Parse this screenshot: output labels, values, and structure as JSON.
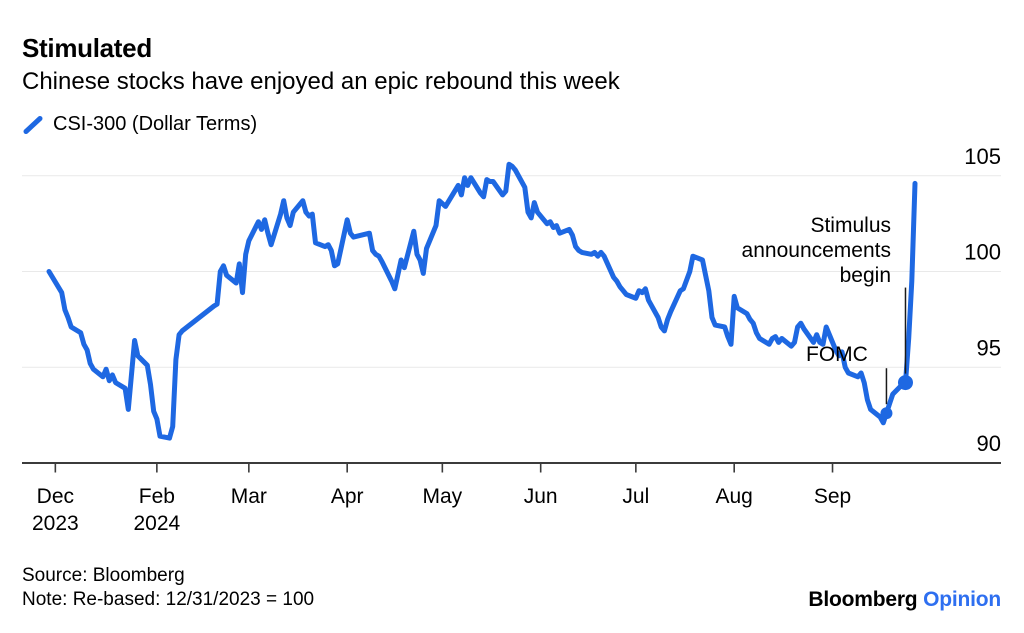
{
  "header": {
    "title": "Stimulated",
    "subtitle": "Chinese stocks have enjoyed an epic rebound this week"
  },
  "legend": {
    "series_label": "CSI-300 (Dollar Terms)"
  },
  "footer": {
    "source": "Source: Bloomberg",
    "note": "Note: Re-based: 12/31/2023 = 100",
    "logo": {
      "bloomberg": "Bloomberg",
      "opinion": "Opinion"
    }
  },
  "colors": {
    "line": "#1e68e2",
    "opinion_blue": "#2e6ff0",
    "grid": "#e9e9e9",
    "axis": "#3b3b3b",
    "text": "#000000",
    "pointer": "#1a1a1a"
  },
  "chart_data": {
    "type": "line",
    "title": "Stimulated",
    "subtitle": "Chinese stocks have enjoyed an epic rebound this week",
    "series_name": "CSI-300 (Dollar Terms)",
    "note": "Re-based: 12/31/2023 = 100",
    "grid": "horizontal",
    "legend_position": "top-left",
    "x_range": [
      "2023-12-29",
      "2024-09-27"
    ],
    "ylim": [
      90,
      106
    ],
    "y_axis": {
      "ticks": [
        105,
        100,
        95,
        90
      ],
      "baseline": 90,
      "side": "right"
    },
    "x_ticks": [
      {
        "label": "Dec",
        "year": "2023",
        "date": "2023-12-31"
      },
      {
        "label": "Feb",
        "year": "2024",
        "date": "2024-02-01"
      },
      {
        "label": "Mar",
        "date": "2024-03-01"
      },
      {
        "label": "Apr",
        "date": "2024-04-01"
      },
      {
        "label": "May",
        "date": "2024-05-01"
      },
      {
        "label": "Jun",
        "date": "2024-06-01"
      },
      {
        "label": "Jul",
        "date": "2024-07-01"
      },
      {
        "label": "Aug",
        "date": "2024-08-01"
      },
      {
        "label": "Sep",
        "date": "2024-09-01"
      }
    ],
    "markers": [
      {
        "date": "2024-09-18",
        "value": 92.6,
        "label": "FOMC"
      },
      {
        "date": "2024-09-24",
        "value": 94.2,
        "label": "Stimulus announcements begin"
      }
    ],
    "points": [
      [
        "2023-12-29",
        100
      ],
      [
        "2024-01-02",
        98.9
      ],
      [
        "2024-01-03",
        98
      ],
      [
        "2024-01-04",
        97.6
      ],
      [
        "2024-01-05",
        97.1
      ],
      [
        "2024-01-08",
        96.8
      ],
      [
        "2024-01-09",
        96.2
      ],
      [
        "2024-01-10",
        95.9
      ],
      [
        "2024-01-11",
        95.2
      ],
      [
        "2024-01-12",
        94.9
      ],
      [
        "2024-01-15",
        94.5
      ],
      [
        "2024-01-16",
        94.9
      ],
      [
        "2024-01-17",
        94.3
      ],
      [
        "2024-01-18",
        94.6
      ],
      [
        "2024-01-19",
        94.2
      ],
      [
        "2024-01-22",
        93.9
      ],
      [
        "2024-01-23",
        92.8
      ],
      [
        "2024-01-25",
        96.4
      ],
      [
        "2024-01-26",
        95.6
      ],
      [
        "2024-01-29",
        95.1
      ],
      [
        "2024-01-30",
        94.1
      ],
      [
        "2024-01-31",
        92.7
      ],
      [
        "2024-02-01",
        92.3
      ],
      [
        "2024-02-02",
        91.4
      ],
      [
        "2024-02-05",
        91.3
      ],
      [
        "2024-02-06",
        91.9
      ],
      [
        "2024-02-07",
        95.4
      ],
      [
        "2024-02-08",
        96.7
      ],
      [
        "2024-02-09",
        96.9
      ],
      [
        "2024-02-19",
        98.2
      ],
      [
        "2024-02-20",
        98.3
      ],
      [
        "2024-02-21",
        100
      ],
      [
        "2024-02-22",
        100.3
      ],
      [
        "2024-02-23",
        99.8
      ],
      [
        "2024-02-26",
        99.4
      ],
      [
        "2024-02-27",
        100.4
      ],
      [
        "2024-02-28",
        98.9
      ],
      [
        "2024-02-29",
        100.9
      ],
      [
        "2024-03-01",
        101.6
      ],
      [
        "2024-03-04",
        102.6
      ],
      [
        "2024-03-05",
        102.2
      ],
      [
        "2024-03-06",
        102.7
      ],
      [
        "2024-03-07",
        102
      ],
      [
        "2024-03-08",
        101.4
      ],
      [
        "2024-03-11",
        103
      ],
      [
        "2024-03-12",
        103.7
      ],
      [
        "2024-03-13",
        102.8
      ],
      [
        "2024-03-14",
        102.4
      ],
      [
        "2024-03-15",
        103.1
      ],
      [
        "2024-03-18",
        103.7
      ],
      [
        "2024-03-19",
        103.1
      ],
      [
        "2024-03-20",
        102.9
      ],
      [
        "2024-03-21",
        103
      ],
      [
        "2024-03-22",
        101.5
      ],
      [
        "2024-03-25",
        101.3
      ],
      [
        "2024-03-26",
        101.4
      ],
      [
        "2024-03-27",
        101.1
      ],
      [
        "2024-03-28",
        100.3
      ],
      [
        "2024-03-29",
        100.4
      ],
      [
        "2024-04-01",
        102.7
      ],
      [
        "2024-04-02",
        102
      ],
      [
        "2024-04-03",
        101.8
      ],
      [
        "2024-04-08",
        102
      ],
      [
        "2024-04-09",
        101.1
      ],
      [
        "2024-04-10",
        100.9
      ],
      [
        "2024-04-11",
        100.8
      ],
      [
        "2024-04-12",
        100.5
      ],
      [
        "2024-04-15",
        99.5
      ],
      [
        "2024-04-16",
        99.1
      ],
      [
        "2024-04-18",
        100.6
      ],
      [
        "2024-04-19",
        100.2
      ],
      [
        "2024-04-22",
        102.1
      ],
      [
        "2024-04-23",
        100.9
      ],
      [
        "2024-04-24",
        100.6
      ],
      [
        "2024-04-25",
        99.9
      ],
      [
        "2024-04-26",
        101.2
      ],
      [
        "2024-04-29",
        102.4
      ],
      [
        "2024-04-30",
        103.7
      ],
      [
        "2024-05-02",
        103.4
      ],
      [
        "2024-05-06",
        104.5
      ],
      [
        "2024-05-07",
        104
      ],
      [
        "2024-05-08",
        104.9
      ],
      [
        "2024-05-09",
        104.5
      ],
      [
        "2024-05-10",
        104.9
      ],
      [
        "2024-05-13",
        104.1
      ],
      [
        "2024-05-14",
        103.9
      ],
      [
        "2024-05-15",
        104.8
      ],
      [
        "2024-05-16",
        104.7
      ],
      [
        "2024-05-17",
        104.7
      ],
      [
        "2024-05-20",
        104
      ],
      [
        "2024-05-21",
        104.2
      ],
      [
        "2024-05-22",
        105.6
      ],
      [
        "2024-05-23",
        105.5
      ],
      [
        "2024-05-24",
        105.3
      ],
      [
        "2024-05-27",
        104.4
      ],
      [
        "2024-05-28",
        103.1
      ],
      [
        "2024-05-29",
        102.8
      ],
      [
        "2024-05-30",
        103.6
      ],
      [
        "2024-05-31",
        103.1
      ],
      [
        "2024-06-03",
        102.5
      ],
      [
        "2024-06-04",
        102.6
      ],
      [
        "2024-06-05",
        102.3
      ],
      [
        "2024-06-06",
        102.4
      ],
      [
        "2024-06-07",
        102
      ],
      [
        "2024-06-10",
        102.2
      ],
      [
        "2024-06-11",
        101.9
      ],
      [
        "2024-06-12",
        101.3
      ],
      [
        "2024-06-13",
        101.1
      ],
      [
        "2024-06-14",
        101
      ],
      [
        "2024-06-17",
        100.9
      ],
      [
        "2024-06-18",
        101
      ],
      [
        "2024-06-19",
        100.8
      ],
      [
        "2024-06-20",
        101
      ],
      [
        "2024-06-21",
        100.8
      ],
      [
        "2024-06-24",
        99.7
      ],
      [
        "2024-06-25",
        99.5
      ],
      [
        "2024-06-26",
        99.2
      ],
      [
        "2024-06-27",
        99
      ],
      [
        "2024-06-28",
        98.8
      ],
      [
        "2024-07-01",
        98.6
      ],
      [
        "2024-07-02",
        99
      ],
      [
        "2024-07-03",
        98.9
      ],
      [
        "2024-07-04",
        99.1
      ],
      [
        "2024-07-05",
        98.5
      ],
      [
        "2024-07-08",
        97.6
      ],
      [
        "2024-07-09",
        97.1
      ],
      [
        "2024-07-10",
        96.9
      ],
      [
        "2024-07-11",
        97.5
      ],
      [
        "2024-07-12",
        97.9
      ],
      [
        "2024-07-15",
        99
      ],
      [
        "2024-07-16",
        99.1
      ],
      [
        "2024-07-18",
        100
      ],
      [
        "2024-07-19",
        100.8
      ],
      [
        "2024-07-22",
        100.6
      ],
      [
        "2024-07-23",
        99.8
      ],
      [
        "2024-07-24",
        99
      ],
      [
        "2024-07-25",
        97.6
      ],
      [
        "2024-07-26",
        97.2
      ],
      [
        "2024-07-29",
        97.1
      ],
      [
        "2024-07-30",
        96.6
      ],
      [
        "2024-07-31",
        96.2
      ],
      [
        "2024-08-01",
        98.7
      ],
      [
        "2024-08-02",
        98.1
      ],
      [
        "2024-08-05",
        97.8
      ],
      [
        "2024-08-06",
        97.5
      ],
      [
        "2024-08-07",
        97.3
      ],
      [
        "2024-08-08",
        96.8
      ],
      [
        "2024-08-09",
        96.5
      ],
      [
        "2024-08-12",
        96.2
      ],
      [
        "2024-08-13",
        96.5
      ],
      [
        "2024-08-14",
        96.6
      ],
      [
        "2024-08-15",
        96.3
      ],
      [
        "2024-08-16",
        96.5
      ],
      [
        "2024-08-19",
        96.1
      ],
      [
        "2024-08-20",
        96.3
      ],
      [
        "2024-08-21",
        97.1
      ],
      [
        "2024-08-22",
        97.3
      ],
      [
        "2024-08-23",
        97
      ],
      [
        "2024-08-26",
        96.3
      ],
      [
        "2024-08-27",
        96.7
      ],
      [
        "2024-08-28",
        96.3
      ],
      [
        "2024-08-29",
        96.2
      ],
      [
        "2024-08-30",
        97.1
      ],
      [
        "2024-09-02",
        95.9
      ],
      [
        "2024-09-03",
        95.6
      ],
      [
        "2024-09-04",
        95.8
      ],
      [
        "2024-09-05",
        95
      ],
      [
        "2024-09-06",
        94.7
      ],
      [
        "2024-09-09",
        94.5
      ],
      [
        "2024-09-10",
        94.7
      ],
      [
        "2024-09-11",
        94.2
      ],
      [
        "2024-09-12",
        93.3
      ],
      [
        "2024-09-13",
        92.8
      ],
      [
        "2024-09-16",
        92.4
      ],
      [
        "2024-09-17",
        92.1
      ],
      [
        "2024-09-18",
        92.6
      ],
      [
        "2024-09-19",
        93.1
      ],
      [
        "2024-09-20",
        93.6
      ],
      [
        "2024-09-23",
        94.1
      ],
      [
        "2024-09-24",
        94.2
      ],
      [
        "2024-09-25",
        96.5
      ],
      [
        "2024-09-26",
        99.5
      ],
      [
        "2024-09-27",
        104.6
      ]
    ]
  }
}
